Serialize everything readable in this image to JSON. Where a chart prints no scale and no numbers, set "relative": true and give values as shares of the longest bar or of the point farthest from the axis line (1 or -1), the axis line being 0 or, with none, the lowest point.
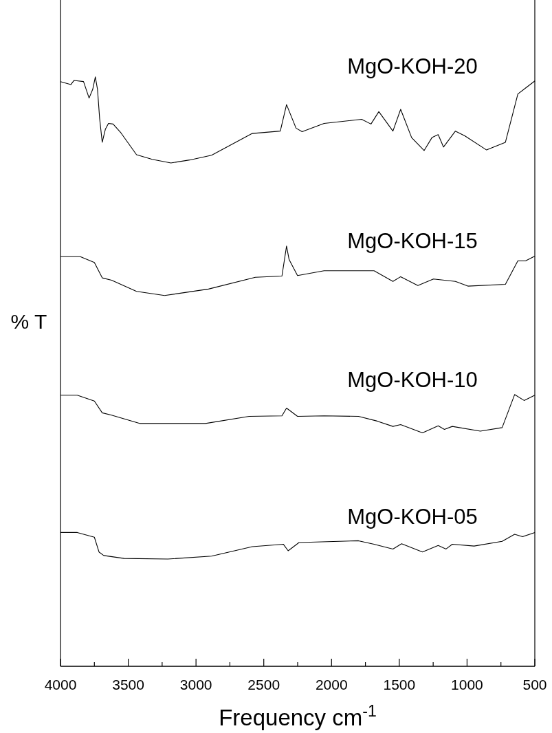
{
  "chart_data": {
    "type": "line",
    "relative": true,
    "xlabel": "Frequency cm$^{-1}$",
    "ylabel": "% T",
    "xlim": [
      4000,
      500
    ],
    "xticks": [
      4000,
      {
        "value": 3750,
        "label": null
      },
      3500,
      {
        "value": 3250,
        "label": null
      },
      3000,
      {
        "value": 2750,
        "label": null
      },
      2500,
      {
        "value": 2250,
        "label": null
      },
      2000,
      {
        "value": 1750,
        "label": null
      },
      1500,
      {
        "value": 1250,
        "label": null
      },
      1000,
      {
        "value": 750,
        "label": null
      },
      500
    ],
    "series": [
      {
        "name": "MgO-KOH-20",
        "color": "#000000",
        "x": [
          4000,
          3923,
          3900,
          3830,
          3789,
          3762,
          3743,
          3727,
          3711,
          3692,
          3669,
          3646,
          3612,
          3554,
          3439,
          3323,
          3185,
          3047,
          2885,
          2585,
          2378,
          2332,
          2262,
          2217,
          2055,
          1778,
          1709,
          1651,
          1547,
          1490,
          1409,
          1317,
          1259,
          1213,
          1174,
          1086,
          1017,
          856,
          717,
          625,
          500
        ],
        "values": [
          0.992,
          0.987,
          0.994,
          0.992,
          0.964,
          0.979,
          1,
          0.979,
          0.929,
          0.889,
          0.911,
          0.921,
          0.92,
          0.905,
          0.868,
          0.86,
          0.854,
          0.859,
          0.867,
          0.904,
          0.908,
          0.953,
          0.913,
          0.907,
          0.921,
          0.928,
          0.92,
          0.941,
          0.908,
          0.945,
          0.897,
          0.875,
          0.897,
          0.902,
          0.881,
          0.908,
          0.9,
          0.876,
          0.889,
          0.971,
          0.993
        ]
      },
      {
        "name": "MgO-KOH-15",
        "color": "#000000",
        "x": [
          4000,
          3854,
          3750,
          3692,
          3623,
          3439,
          3232,
          2908,
          2562,
          2366,
          2332,
          2313,
          2251,
          2055,
          1686,
          1547,
          1490,
          1363,
          1248,
          1086,
          994,
          717,
          625,
          567,
          500
        ],
        "values": [
          0.695,
          0.695,
          0.685,
          0.659,
          0.655,
          0.636,
          0.629,
          0.64,
          0.66,
          0.662,
          0.713,
          0.69,
          0.663,
          0.671,
          0.671,
          0.653,
          0.661,
          0.646,
          0.657,
          0.653,
          0.645,
          0.648,
          0.688,
          0.688,
          0.696
        ]
      },
      {
        "name": "MgO-KOH-10",
        "color": "#000000",
        "x": [
          4000,
          3876,
          3750,
          3692,
          3623,
          3416,
          2931,
          2608,
          2366,
          2332,
          2251,
          2055,
          1801,
          1663,
          1547,
          1490,
          1329,
          1213,
          1167,
          1109,
          902,
          741,
          649,
          579,
          500
        ],
        "values": [
          0.46,
          0.46,
          0.45,
          0.43,
          0.426,
          0.412,
          0.412,
          0.424,
          0.425,
          0.438,
          0.424,
          0.425,
          0.424,
          0.416,
          0.407,
          0.41,
          0.396,
          0.408,
          0.402,
          0.407,
          0.399,
          0.405,
          0.461,
          0.451,
          0.46
        ]
      },
      {
        "name": "MgO-KOH-05",
        "color": "#000000",
        "x": [
          4000,
          3876,
          3750,
          3716,
          3681,
          3531,
          3208,
          2885,
          2585,
          2355,
          2320,
          2240,
          1801,
          1686,
          1547,
          1483,
          1329,
          1213,
          1155,
          1109,
          948,
          741,
          649,
          590,
          500
        ],
        "values": [
          0.227,
          0.227,
          0.219,
          0.194,
          0.188,
          0.183,
          0.182,
          0.187,
          0.203,
          0.207,
          0.196,
          0.21,
          0.213,
          0.207,
          0.199,
          0.208,
          0.194,
          0.205,
          0.199,
          0.207,
          0.204,
          0.212,
          0.224,
          0.22,
          0.227
        ]
      }
    ]
  }
}
